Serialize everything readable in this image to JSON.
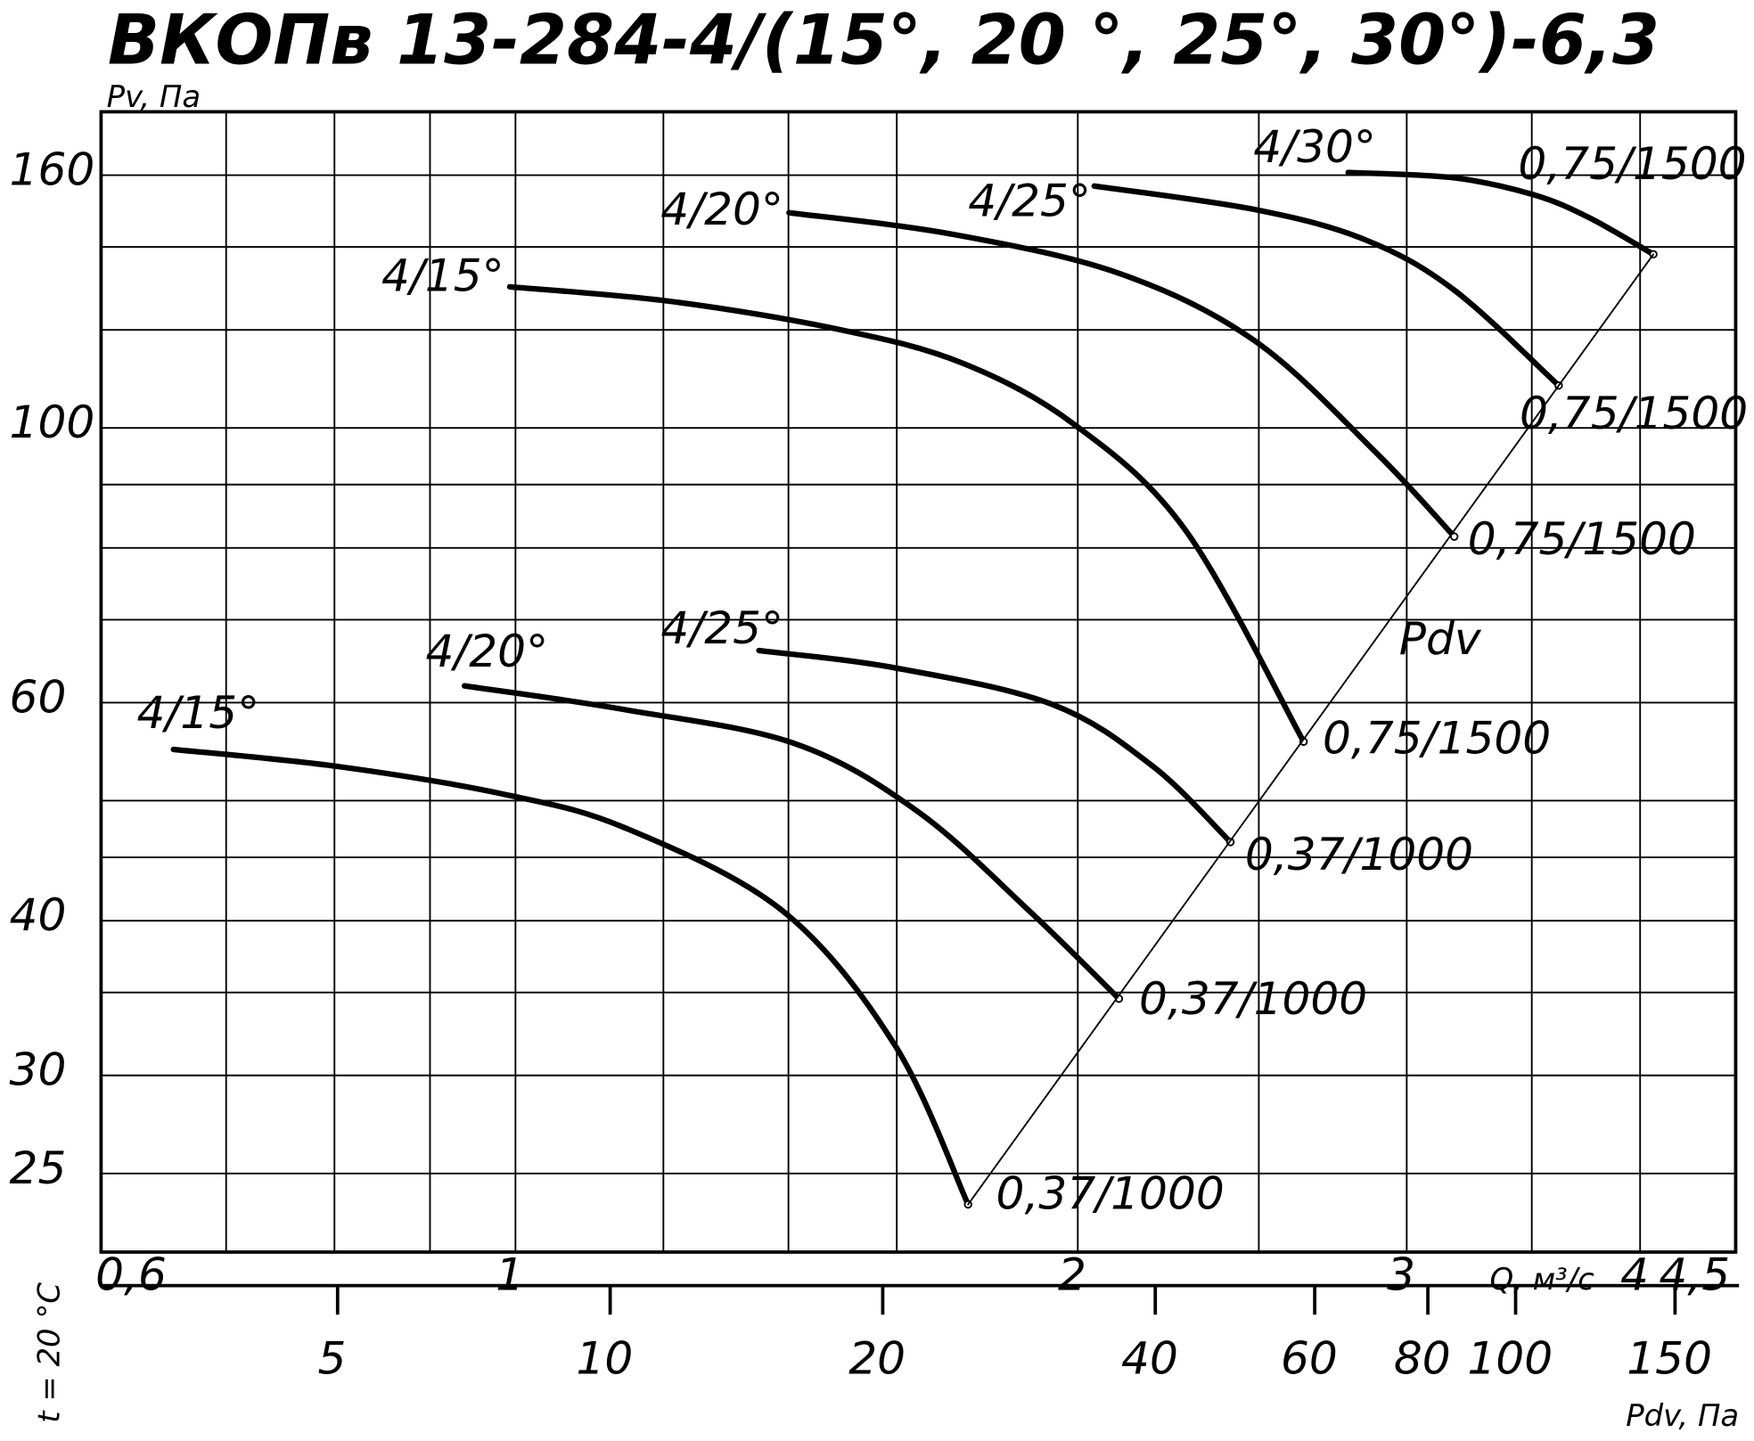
{
  "chart_data": {
    "type": "line",
    "title": "ВКОПв 13-284-4/(15°, 20 °, 25°, 30°)-6,3",
    "y_label": "Pv, Па",
    "x_label": "Q, м³/с",
    "x2_label": "Pdv, Па",
    "side_label": "t = 20 °C",
    "x_log": true,
    "y_log": true,
    "x2_log": true,
    "xlim": [
      0.6,
      4.5
    ],
    "xticks": [
      {
        "value": 0.6,
        "label": "0,6"
      },
      1,
      2,
      3,
      4,
      {
        "value": 4.5,
        "label": "4,5"
      }
    ],
    "ylim": [
      21.6,
      180
    ],
    "yticks": [
      25,
      30,
      40,
      60,
      100,
      160
    ],
    "x2lim": [
      2.74,
      175
    ],
    "x2ticks": [
      5,
      10,
      20,
      40,
      60,
      80,
      100,
      150
    ],
    "xgrid": [
      0.7,
      0.8,
      0.9,
      1,
      1.2,
      1.4,
      1.6,
      2,
      2.5,
      3,
      3.5,
      4
    ],
    "ygrid": [
      25,
      30,
      35,
      40,
      45,
      50,
      60,
      70,
      80,
      90,
      100,
      120,
      140,
      160
    ],
    "series": [
      {
        "name": "4/15°",
        "end_label": "0,37/1000",
        "color": "#000000",
        "x": [
          0.656,
          0.802,
          0.986,
          1.146,
          1.391,
          1.597,
          1.747
        ],
        "values": [
          55.0,
          53.3,
          50.6,
          47.5,
          40.7,
          31.7,
          23.6
        ]
      },
      {
        "name": "4/20°",
        "end_label": "0,37/1000",
        "color": "#000000",
        "x": [
          0.939,
          1.146,
          1.411,
          1.642,
          1.885,
          2.104
        ],
        "values": [
          61.9,
          59.2,
          55.6,
          49.0,
          40.7,
          34.6
        ]
      },
      {
        "name": "4/25°",
        "end_label": "0,37/1000",
        "color": "#000000",
        "x": [
          1.35,
          1.597,
          1.938,
          2.194,
          2.414
        ],
        "values": [
          66.1,
          64.0,
          59.8,
          53.3,
          46.3
        ]
      },
      {
        "name": "4/15°",
        "end_label": "0,75/1500",
        "color": "#000000",
        "x": [
          0.993,
          1.212,
          1.49,
          1.735,
          1.992,
          2.285,
          2.642
        ],
        "values": [
          130.0,
          126.5,
          120.1,
          112.8,
          100.6,
          82.6,
          55.8
        ]
      },
      {
        "name": "4/20°",
        "end_label": "0,75/1500",
        "color": "#000000",
        "x": [
          1.401,
          1.711,
          2.104,
          2.487,
          2.889,
          3.181
        ],
        "values": [
          149.2,
          143.4,
          133.3,
          117.6,
          95.5,
          81.7
        ]
      },
      {
        "name": "4/25°",
        "end_label": "0,75/1500",
        "color": "#000000",
        "x": [
          2.041,
          2.487,
          2.85,
          3.181,
          3.618
        ],
        "values": [
          156.8,
          150.1,
          141.9,
          129.2,
          108.2
        ]
      },
      {
        "name": "4/30°",
        "end_label": "0,75/1500",
        "color": "#000000",
        "x": [
          2.791,
          3.181,
          3.506,
          3.754,
          4.066
        ],
        "values": [
          160.8,
          159.2,
          154.3,
          147.9,
          138.1
        ]
      },
      {
        "name": "Pdv",
        "color": "#000000",
        "x": [
          1.747,
          4.066
        ],
        "values": [
          23.6,
          138.1
        ]
      }
    ]
  }
}
